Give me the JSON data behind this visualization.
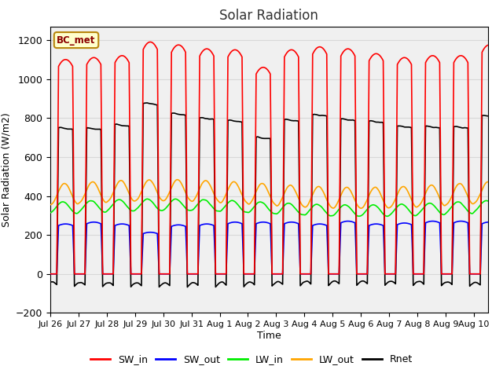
{
  "title": "Solar Radiation",
  "xlabel": "Time",
  "ylabel": "Solar Radiation (W/m2)",
  "ylim": [
    -200,
    1270
  ],
  "yticks": [
    -200,
    0,
    200,
    400,
    600,
    800,
    1000,
    1200
  ],
  "series": {
    "SW_in": {
      "color": "#FF0000",
      "lw": 1.2
    },
    "SW_out": {
      "color": "#0000FF",
      "lw": 1.2
    },
    "LW_in": {
      "color": "#00EE00",
      "lw": 1.2
    },
    "LW_out": {
      "color": "#FFA500",
      "lw": 1.2
    },
    "Rnet": {
      "color": "#000000",
      "lw": 1.2
    }
  },
  "xtick_labels": [
    "Jul 26",
    "Jul 27",
    "Jul 28",
    "Jul 29",
    "Jul 30",
    "Jul 31",
    "Aug 1",
    "Aug 2",
    "Aug 3",
    "Aug 4",
    "Aug 5",
    "Aug 6",
    "Aug 7",
    "Aug 8",
    "Aug 9",
    "Aug 10"
  ],
  "station_label": "BC_met",
  "background_color": "#FFFFFF",
  "axes_bg": "#F0F0F0",
  "grid_color": "#D8D8D8",
  "figsize": [
    6.4,
    4.8
  ],
  "dpi": 100
}
